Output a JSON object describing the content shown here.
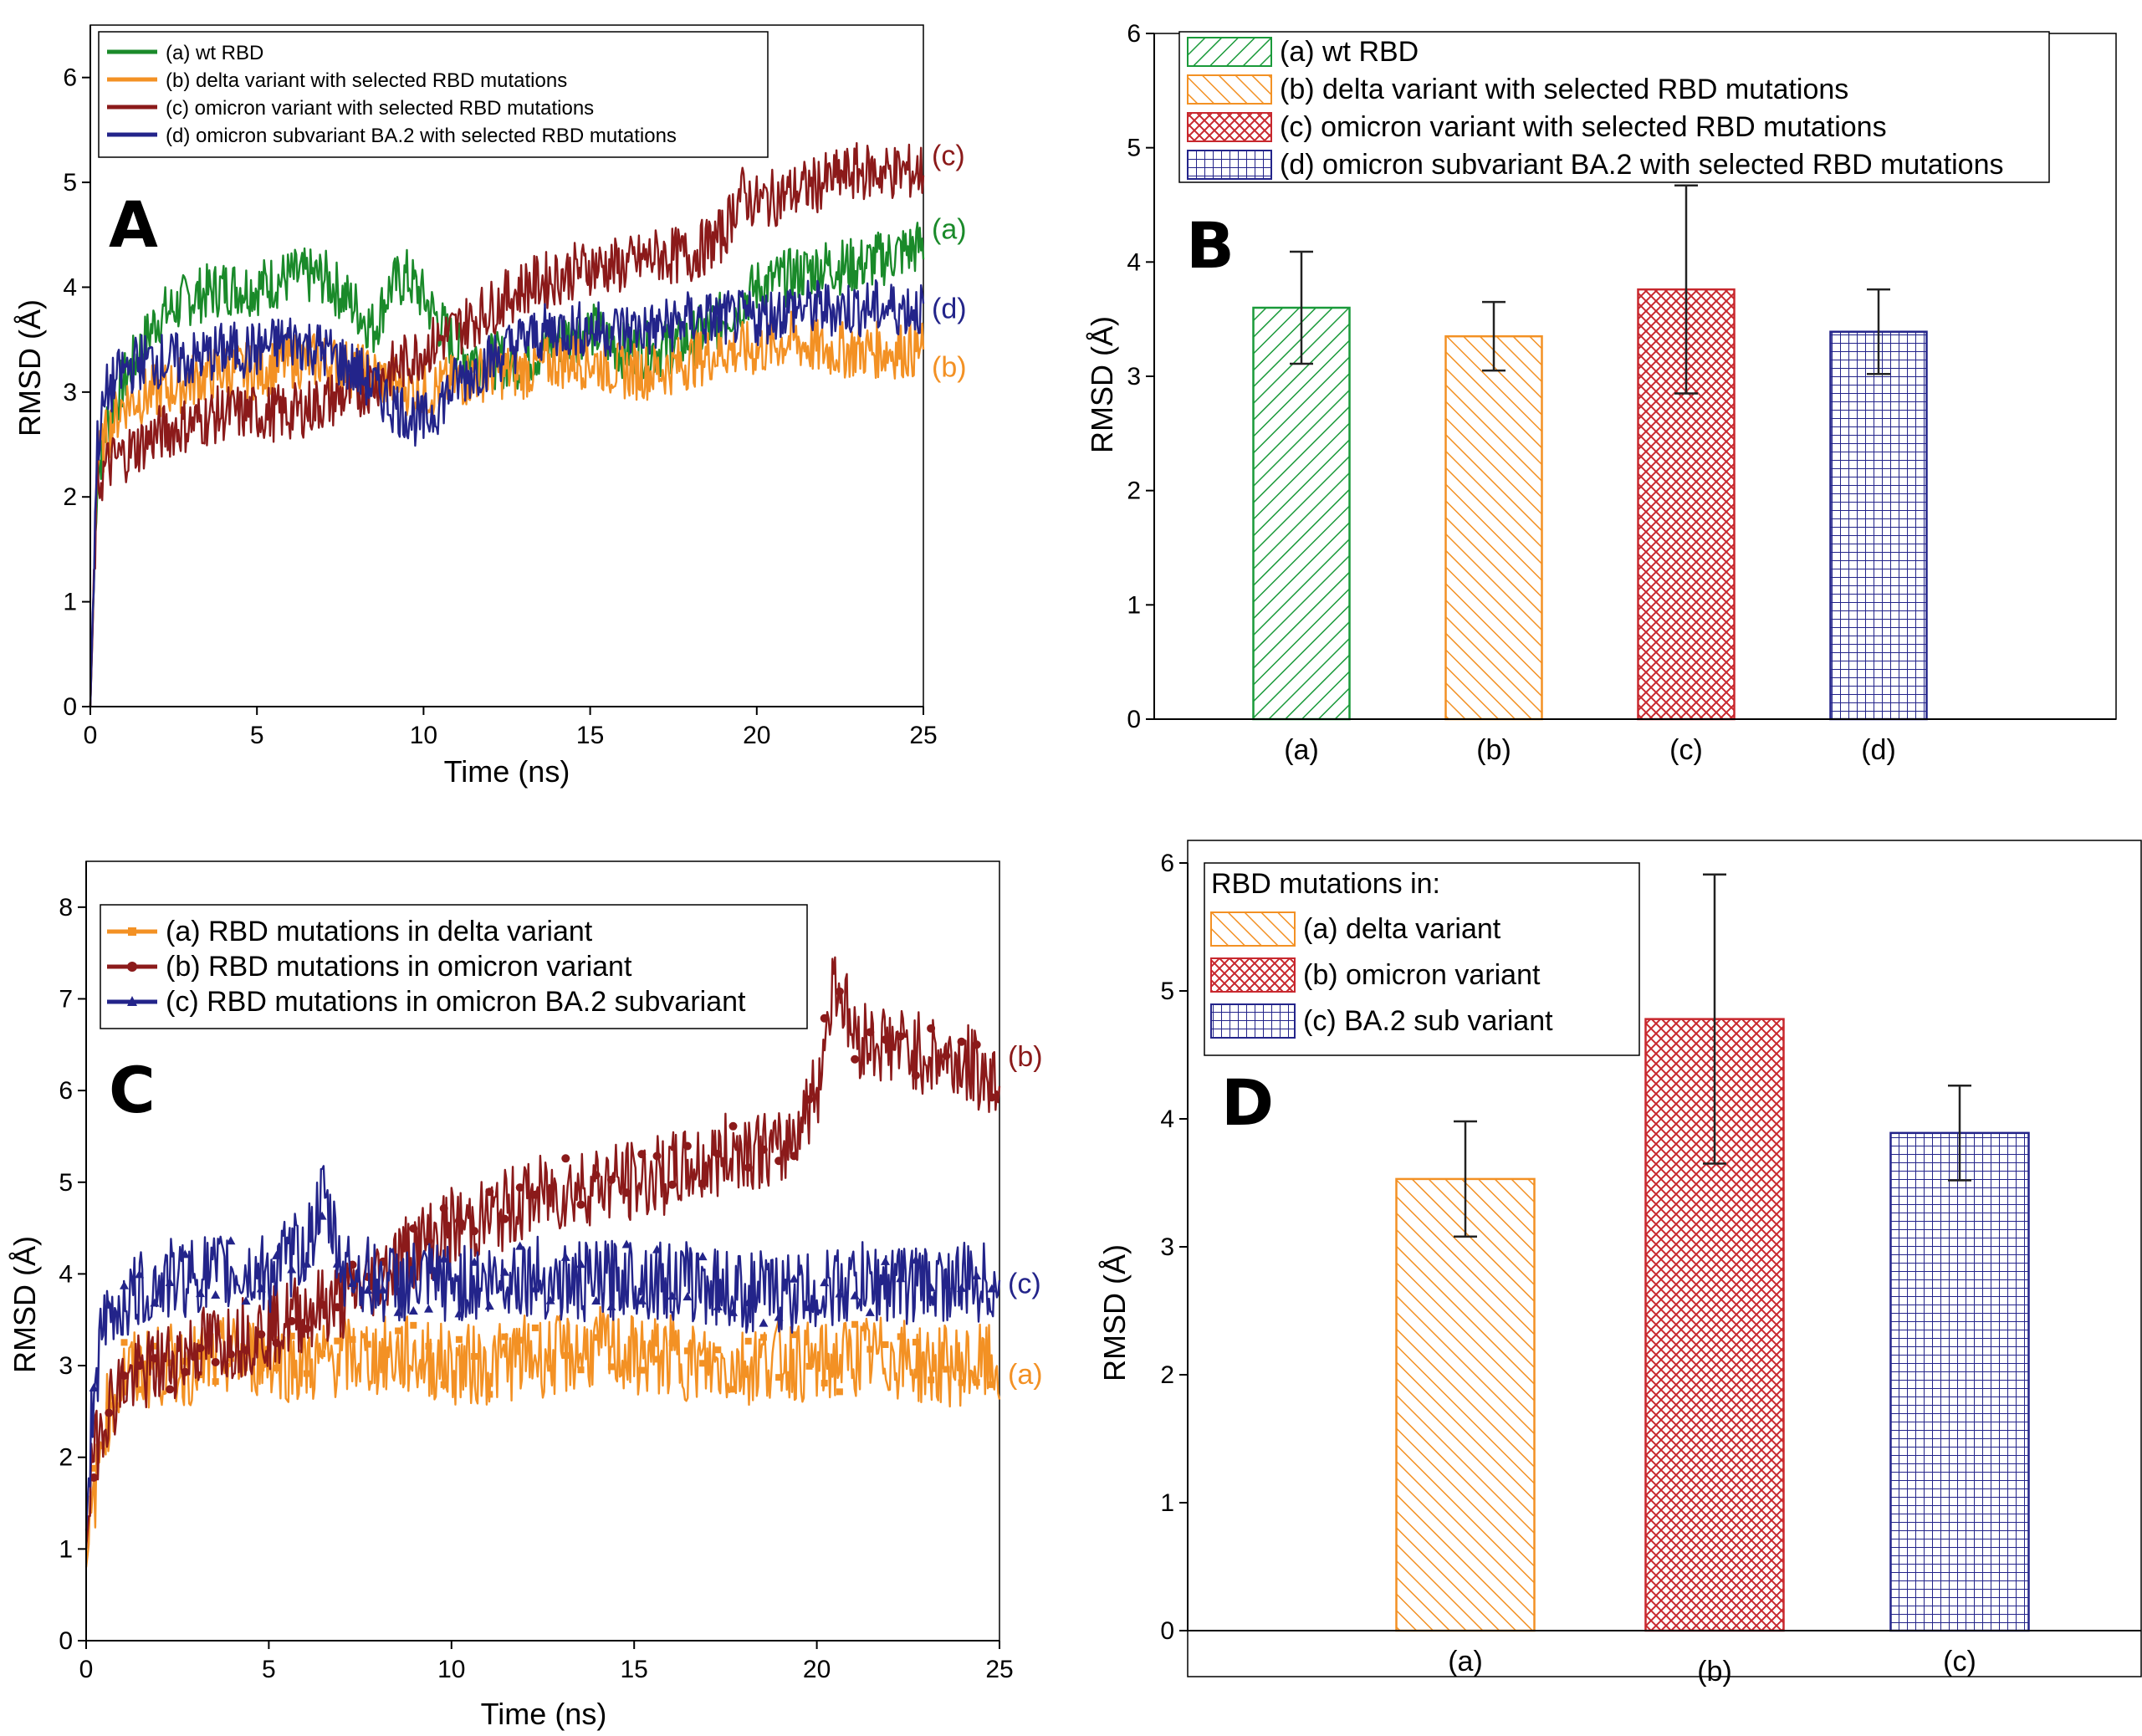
{
  "chart_data": [
    {
      "panel": "A",
      "type": "line",
      "xlabel": "Time (ns)",
      "ylabel": "RMSD (Å)",
      "xlim": [
        0,
        25
      ],
      "ylim": [
        0,
        6.5
      ],
      "xticks": [
        0,
        5,
        10,
        15,
        20,
        25
      ],
      "yticks": [
        0,
        1,
        2,
        3,
        4,
        5,
        6
      ],
      "legend_position": "top-left",
      "series": [
        {
          "name": "(a) wt RBD",
          "end_label": "(a)",
          "color": "#1a8a2a",
          "x": [
            0,
            0.2,
            0.5,
            1,
            1.5,
            2,
            2.5,
            3,
            4,
            5,
            6,
            7,
            8,
            8.5,
            9,
            9.5,
            10,
            11,
            12,
            13,
            14,
            15,
            16,
            17,
            18,
            19,
            20,
            21,
            22,
            23,
            24,
            25
          ],
          "y": [
            0,
            2.2,
            2.7,
            3.1,
            3.4,
            3.7,
            3.8,
            3.9,
            4.0,
            4.0,
            4.1,
            4.1,
            3.8,
            3.6,
            4.0,
            4.1,
            3.9,
            3.4,
            3.3,
            3.3,
            3.5,
            3.6,
            3.4,
            3.4,
            3.5,
            3.7,
            4.0,
            4.1,
            4.2,
            4.2,
            4.3,
            4.4
          ]
        },
        {
          "name": "(b) delta variant with selected RBD mutations",
          "end_label": "(b)",
          "color": "#f39124",
          "x": [
            0,
            0.2,
            0.5,
            1,
            2,
            3,
            4,
            5,
            6,
            7,
            8,
            9,
            10,
            11,
            12,
            13,
            14,
            15,
            16,
            17,
            18,
            19,
            20,
            21,
            22,
            23,
            24,
            25
          ],
          "y": [
            0,
            2.3,
            2.6,
            2.9,
            3.0,
            3.1,
            3.2,
            3.2,
            3.3,
            3.3,
            3.2,
            3.1,
            3.0,
            3.1,
            3.2,
            3.2,
            3.3,
            3.3,
            3.2,
            3.2,
            3.3,
            3.4,
            3.4,
            3.5,
            3.4,
            3.4,
            3.4,
            3.4
          ]
        },
        {
          "name": "(c) omicron variant with selected RBD mutations",
          "end_label": "(c)",
          "color": "#8b1a1a",
          "x": [
            0,
            0.2,
            0.5,
            1,
            2,
            3,
            4,
            5,
            6,
            7,
            8,
            9,
            10,
            11,
            12,
            13,
            14,
            15,
            16,
            17,
            18,
            19,
            19.5,
            20,
            21,
            22,
            23,
            24,
            25
          ],
          "y": [
            0,
            2.1,
            2.3,
            2.4,
            2.6,
            2.7,
            2.8,
            2.8,
            2.8,
            2.9,
            3.0,
            3.2,
            3.4,
            3.6,
            3.8,
            4.0,
            4.1,
            4.2,
            4.2,
            4.3,
            4.3,
            4.5,
            4.9,
            4.8,
            4.9,
            5.0,
            5.1,
            5.1,
            5.1
          ]
        },
        {
          "name": "(d) omicron subvariant BA.2 with selected RBD mutations",
          "end_label": "(d)",
          "color": "#23248a",
          "x": [
            0,
            0.2,
            0.5,
            1,
            1.5,
            2,
            3,
            4,
            5,
            6,
            7,
            8,
            9,
            10,
            11,
            12,
            13,
            14,
            15,
            16,
            17,
            18,
            19,
            20,
            21,
            22,
            23,
            24,
            25
          ],
          "y": [
            0,
            2.5,
            3.0,
            3.2,
            3.3,
            3.3,
            3.3,
            3.4,
            3.4,
            3.5,
            3.4,
            3.2,
            2.9,
            2.7,
            3.1,
            3.3,
            3.5,
            3.6,
            3.6,
            3.6,
            3.6,
            3.7,
            3.7,
            3.7,
            3.8,
            3.8,
            3.8,
            3.8,
            3.8
          ]
        }
      ]
    },
    {
      "panel": "B",
      "type": "bar",
      "ylabel": "RMSD (Å)",
      "ylim": [
        0,
        6
      ],
      "yticks": [
        0,
        1,
        2,
        3,
        4,
        5,
        6
      ],
      "categories": [
        "(a)",
        "(b)",
        "(c)",
        "(d)"
      ],
      "values": [
        3.6,
        3.35,
        3.76,
        3.39
      ],
      "errors": [
        0.49,
        0.3,
        0.91,
        0.37
      ],
      "colors": [
        "#1a9a3a",
        "#f39124",
        "#c8282e",
        "#23248a"
      ],
      "patterns": [
        "diag-right",
        "diag-left",
        "crosshatch",
        "grid"
      ],
      "legend_position": "top",
      "legend": [
        "(a) wt  RBD",
        "(b) delta variant with selected RBD mutations",
        "(c) omicron variant with selected RBD mutations",
        "(d) omicron subvariant BA.2 with selected RBD mutations"
      ]
    },
    {
      "panel": "C",
      "type": "line",
      "xlabel": "Time (ns)",
      "ylabel": "RMSD (Å)",
      "xlim": [
        0,
        25
      ],
      "ylim": [
        0,
        8.5
      ],
      "xticks": [
        0,
        5,
        10,
        15,
        20,
        25
      ],
      "yticks": [
        0,
        1,
        2,
        3,
        4,
        5,
        6,
        7,
        8
      ],
      "legend_position": "top-left",
      "series": [
        {
          "name": "(a) RBD mutations in delta variant",
          "end_label": "(a)",
          "color": "#f39124",
          "marker": "square",
          "x": [
            0,
            0.2,
            0.5,
            1,
            2,
            3,
            4,
            5,
            6,
            7,
            8,
            9,
            10,
            11,
            12,
            13,
            14,
            15,
            16,
            17,
            18,
            19,
            20,
            21,
            22,
            23,
            24,
            25
          ],
          "y": [
            0.8,
            1.5,
            2.4,
            2.9,
            3.0,
            3.0,
            3.1,
            3.1,
            3.0,
            3.1,
            3.1,
            3.1,
            3.0,
            3.0,
            3.1,
            3.1,
            3.2,
            3.1,
            3.1,
            3.0,
            3.0,
            3.1,
            3.0,
            3.1,
            3.1,
            3.0,
            3.0,
            3.0
          ]
        },
        {
          "name": "(b) RBD mutations in omicron variant",
          "end_label": "(b)",
          "color": "#8b1a1a",
          "marker": "circle",
          "x": [
            0,
            0.2,
            0.5,
            1,
            2,
            3,
            4,
            5,
            6,
            7,
            8,
            9,
            10,
            11,
            12,
            13,
            14,
            15,
            16,
            17,
            18,
            19,
            20,
            20.5,
            21,
            22,
            23,
            24,
            25
          ],
          "y": [
            1.0,
            2.0,
            2.5,
            2.8,
            3.0,
            3.2,
            3.3,
            3.4,
            3.6,
            3.7,
            4.0,
            4.3,
            4.5,
            4.6,
            4.8,
            4.9,
            5.0,
            5.0,
            5.1,
            5.2,
            5.4,
            5.3,
            6.0,
            7.3,
            6.6,
            6.5,
            6.4,
            6.3,
            6.1
          ]
        },
        {
          "name": "(c) RBD mutations in omicron BA.2 subvariant",
          "end_label": "(c)",
          "color": "#23248a",
          "marker": "triangle",
          "x": [
            0,
            0.2,
            0.5,
            1,
            2,
            3,
            4,
            5,
            6,
            6.5,
            7,
            8,
            9,
            10,
            11,
            12,
            13,
            14,
            15,
            16,
            17,
            18,
            19,
            20,
            21,
            22,
            23,
            24,
            25
          ],
          "y": [
            1.2,
            2.8,
            3.4,
            3.7,
            3.9,
            4.0,
            4.0,
            4.0,
            4.3,
            4.8,
            4.1,
            3.9,
            3.9,
            3.9,
            3.9,
            4.0,
            3.9,
            3.9,
            4.0,
            3.9,
            3.9,
            3.8,
            3.8,
            3.8,
            3.9,
            3.9,
            3.9,
            3.9,
            3.9
          ]
        }
      ]
    },
    {
      "panel": "D",
      "type": "bar",
      "ylabel": "RMSD (Å)",
      "ylim": [
        0,
        6
      ],
      "yticks": [
        0,
        1,
        2,
        3,
        4,
        5,
        6
      ],
      "categories": [
        "(a)",
        "(b)",
        "(c)"
      ],
      "values": [
        3.53,
        4.78,
        3.89
      ],
      "errors": [
        0.45,
        1.13,
        0.37
      ],
      "colors": [
        "#f39124",
        "#c8282e",
        "#23248a"
      ],
      "patterns": [
        "diag-left",
        "crosshatch",
        "grid"
      ],
      "legend_position": "top-left",
      "legend_title": "RBD mutations in:",
      "legend": [
        "(a) delta variant",
        "(b) omicron variant",
        "(c) BA.2 sub variant"
      ]
    }
  ]
}
